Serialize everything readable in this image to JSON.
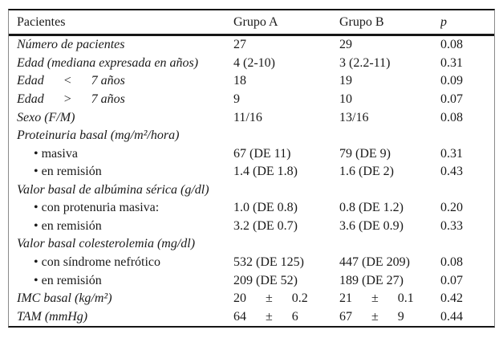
{
  "meta": {
    "background": "#ffffff",
    "text_color": "#1a1a1a",
    "rule_color": "#161616"
  },
  "icons": {
    "bullet": "•"
  },
  "table": {
    "columns": [
      {
        "label": "Pacientes"
      },
      {
        "label": "Grupo A"
      },
      {
        "label": "Grupo B"
      },
      {
        "label": "p"
      }
    ],
    "rows": [
      {
        "label": "Número de pacientes",
        "a": "27",
        "b": "29",
        "p": "0.08"
      },
      {
        "label": "Edad (mediana expresada en años)",
        "a": "4 (2-10)",
        "b": "3 (2.2-11)",
        "p": "0.31"
      },
      {
        "label": "Edad      <      7 años",
        "a": "18",
        "b": "19",
        "p": "0.09"
      },
      {
        "label": "Edad      >      7 años",
        "a": "9",
        "b": "10",
        "p": "0.07"
      },
      {
        "label": "Sexo (F/M)",
        "a": "11/16",
        "b": "13/16",
        "p": "0.08"
      },
      {
        "label": "Proteinuria basal (mg/m²/hora)",
        "section": true,
        "a": "",
        "b": "",
        "p": ""
      },
      {
        "label": "masiva",
        "bullet": true,
        "a": "67 (DE 11)",
        "b": "79 (DE 9)",
        "p": "0.31"
      },
      {
        "label": "en remisión",
        "bullet": true,
        "a": "1.4 (DE 1.8)",
        "b": "1.6 (DE 2)",
        "p": "0.43"
      },
      {
        "label": "Valor basal de albúmina sérica (g/dl)",
        "section": true,
        "a": "",
        "b": "",
        "p": ""
      },
      {
        "label": "con protenuria masiva:",
        "bullet": true,
        "a": "1.0 (DE 0.8)",
        "b": "0.8 (DE 1.2)",
        "p": "0.20"
      },
      {
        "label": "en remisión",
        "bullet": true,
        "a": "3.2 (DE 0.7)",
        "b": "3.6 (DE 0.9)",
        "p": "0.33"
      },
      {
        "label": "Valor basal colesterolemia (mg/dl)",
        "section": true,
        "a": "",
        "b": "",
        "p": ""
      },
      {
        "label": "con síndrome nefrótico",
        "bullet": true,
        "a": "532 (DE 125)",
        "b": "447 (DE 209)",
        "p": "0.08"
      },
      {
        "label": "en remisión",
        "bullet": true,
        "a": "209 (DE 52)",
        "b": "189 (DE 27)",
        "p": "0.07"
      },
      {
        "label": "IMC basal (kg/m²)",
        "a": "20      ±      0.2",
        "b": "21      ±      0.1",
        "p": "0.42"
      },
      {
        "label": "TAM (mmHg)",
        "a": "64      ±      6",
        "b": "67      ±      9",
        "p": "0.44"
      }
    ]
  }
}
